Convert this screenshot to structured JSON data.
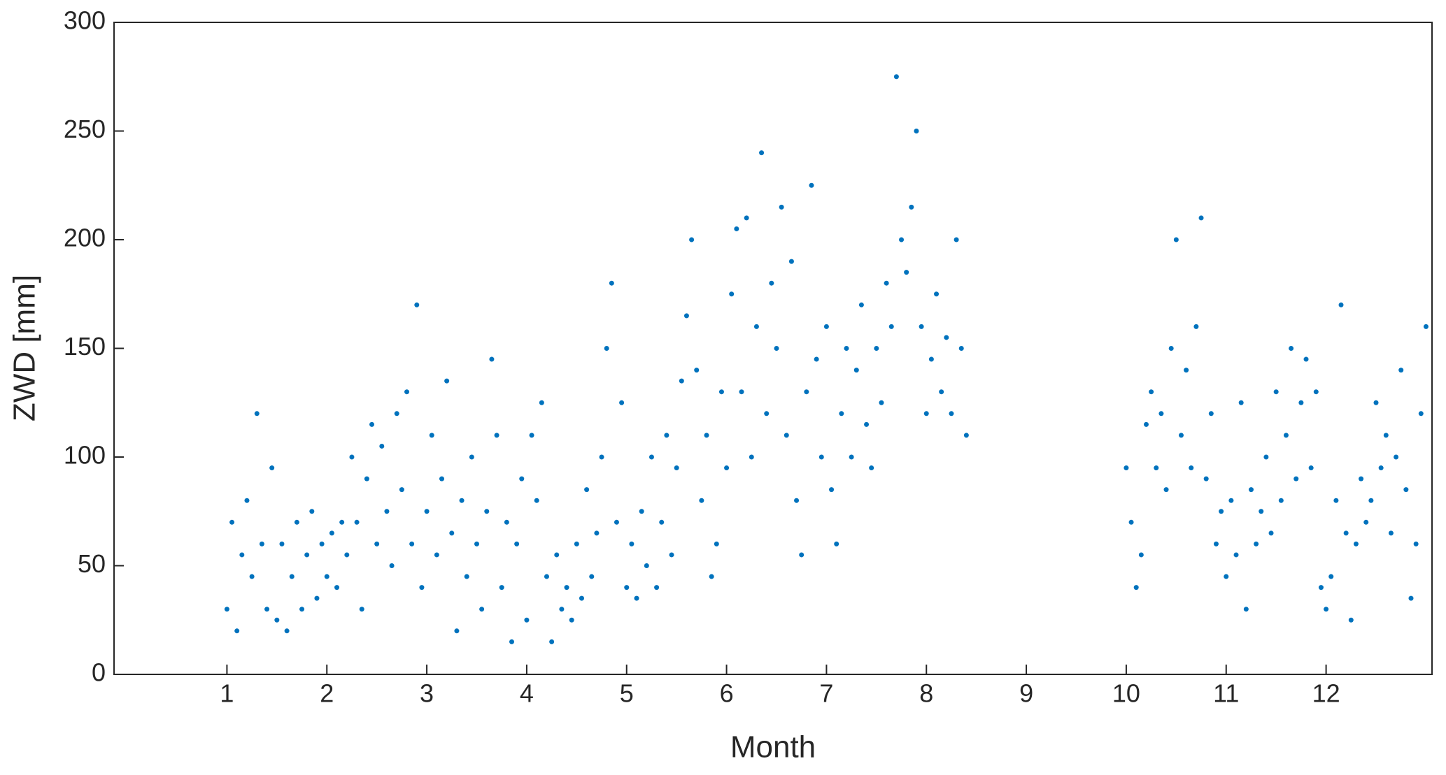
{
  "chart_data": {
    "type": "scatter",
    "xlabel": "Month",
    "ylabel": "ZWD [mm]",
    "color": "#0072bd",
    "xlim": [
      -0.13,
      13.06
    ],
    "ylim": [
      0,
      300
    ],
    "xticks": [
      1,
      2,
      3,
      4,
      5,
      6,
      7,
      8,
      9,
      10,
      11,
      12
    ],
    "yticks": [
      0,
      50,
      100,
      150,
      200,
      250,
      300
    ],
    "x": [
      1.0,
      1.05,
      1.1,
      1.15,
      1.2,
      1.25,
      1.3,
      1.35,
      1.4,
      1.45,
      1.5,
      1.55,
      1.6,
      1.65,
      1.7,
      1.75,
      1.8,
      1.85,
      1.9,
      1.95,
      2.0,
      2.05,
      2.1,
      2.15,
      2.2,
      2.25,
      2.3,
      2.35,
      2.4,
      2.45,
      2.5,
      2.55,
      2.6,
      2.65,
      2.7,
      2.75,
      2.8,
      2.85,
      2.9,
      2.95,
      3.0,
      3.05,
      3.1,
      3.15,
      3.2,
      3.25,
      3.3,
      3.35,
      3.4,
      3.45,
      3.5,
      3.55,
      3.6,
      3.65,
      3.7,
      3.75,
      3.8,
      3.85,
      3.9,
      3.95,
      4.0,
      4.05,
      4.1,
      4.15,
      4.2,
      4.25,
      4.3,
      4.35,
      4.4,
      4.45,
      4.5,
      4.55,
      4.6,
      4.65,
      4.7,
      4.75,
      4.8,
      4.85,
      4.9,
      4.95,
      5.0,
      5.05,
      5.1,
      5.15,
      5.2,
      5.25,
      5.3,
      5.35,
      5.4,
      5.45,
      5.5,
      5.55,
      5.6,
      5.65,
      5.7,
      5.75,
      5.8,
      5.85,
      5.9,
      5.95,
      6.0,
      6.05,
      6.1,
      6.15,
      6.2,
      6.25,
      6.3,
      6.35,
      6.4,
      6.45,
      6.5,
      6.55,
      6.6,
      6.65,
      6.7,
      6.75,
      6.8,
      6.85,
      6.9,
      6.95,
      7.0,
      7.05,
      7.1,
      7.15,
      7.2,
      7.25,
      7.3,
      7.35,
      7.4,
      7.45,
      7.5,
      7.55,
      7.6,
      7.65,
      7.7,
      7.75,
      7.8,
      7.85,
      7.9,
      7.95,
      8.0,
      8.05,
      8.1,
      8.15,
      8.2,
      8.25,
      8.3,
      8.35,
      8.4,
      10.0,
      10.05,
      10.1,
      10.15,
      10.2,
      10.25,
      10.3,
      10.35,
      10.4,
      10.45,
      10.5,
      10.55,
      10.6,
      10.65,
      10.7,
      10.75,
      10.8,
      10.85,
      10.9,
      10.95,
      11.0,
      11.05,
      11.1,
      11.15,
      11.2,
      11.25,
      11.3,
      11.35,
      11.4,
      11.45,
      11.5,
      11.55,
      11.6,
      11.65,
      11.7,
      11.75,
      11.8,
      11.85,
      11.9,
      11.95,
      12.0,
      12.05,
      12.1,
      12.15,
      12.2,
      12.25,
      12.3,
      12.35,
      12.4,
      12.45,
      12.5,
      12.55,
      12.6,
      12.65,
      12.7,
      12.75,
      12.8,
      12.85,
      12.9,
      12.95,
      13.0
    ],
    "values": [
      30,
      70,
      20,
      55,
      80,
      45,
      120,
      60,
      30,
      95,
      25,
      60,
      20,
      45,
      70,
      30,
      55,
      75,
      35,
      60,
      45,
      65,
      40,
      70,
      55,
      100,
      70,
      30,
      90,
      115,
      60,
      105,
      75,
      50,
      120,
      85,
      130,
      60,
      170,
      40,
      75,
      110,
      55,
      90,
      135,
      65,
      20,
      80,
      45,
      100,
      60,
      30,
      75,
      145,
      110,
      40,
      70,
      15,
      60,
      90,
      25,
      110,
      80,
      125,
      45,
      15,
      55,
      30,
      40,
      25,
      60,
      35,
      85,
      45,
      65,
      100,
      150,
      180,
      70,
      125,
      40,
      60,
      35,
      75,
      50,
      100,
      40,
      70,
      110,
      55,
      95,
      135,
      165,
      200,
      140,
      80,
      110,
      45,
      60,
      130,
      95,
      175,
      205,
      130,
      210,
      100,
      160,
      240,
      120,
      180,
      150,
      215,
      110,
      190,
      80,
      55,
      130,
      225,
      145,
      100,
      160,
      85,
      60,
      120,
      150,
      100,
      140,
      170,
      115,
      95,
      150,
      125,
      180,
      160,
      275,
      200,
      185,
      215,
      250,
      160,
      120,
      145,
      175,
      130,
      155,
      120,
      200,
      150,
      110,
      95,
      70,
      40,
      55,
      115,
      130,
      95,
      120,
      85,
      150,
      200,
      110,
      140,
      95,
      160,
      210,
      90,
      120,
      60,
      75,
      45,
      80,
      55,
      125,
      30,
      85,
      60,
      75,
      100,
      65,
      130,
      80,
      110,
      150,
      90,
      125,
      145,
      95,
      130,
      40,
      30,
      45,
      80,
      170,
      65,
      25,
      60,
      90,
      70,
      80,
      125,
      95,
      110,
      65,
      100,
      140,
      85,
      35,
      60,
      120,
      160
    ]
  }
}
